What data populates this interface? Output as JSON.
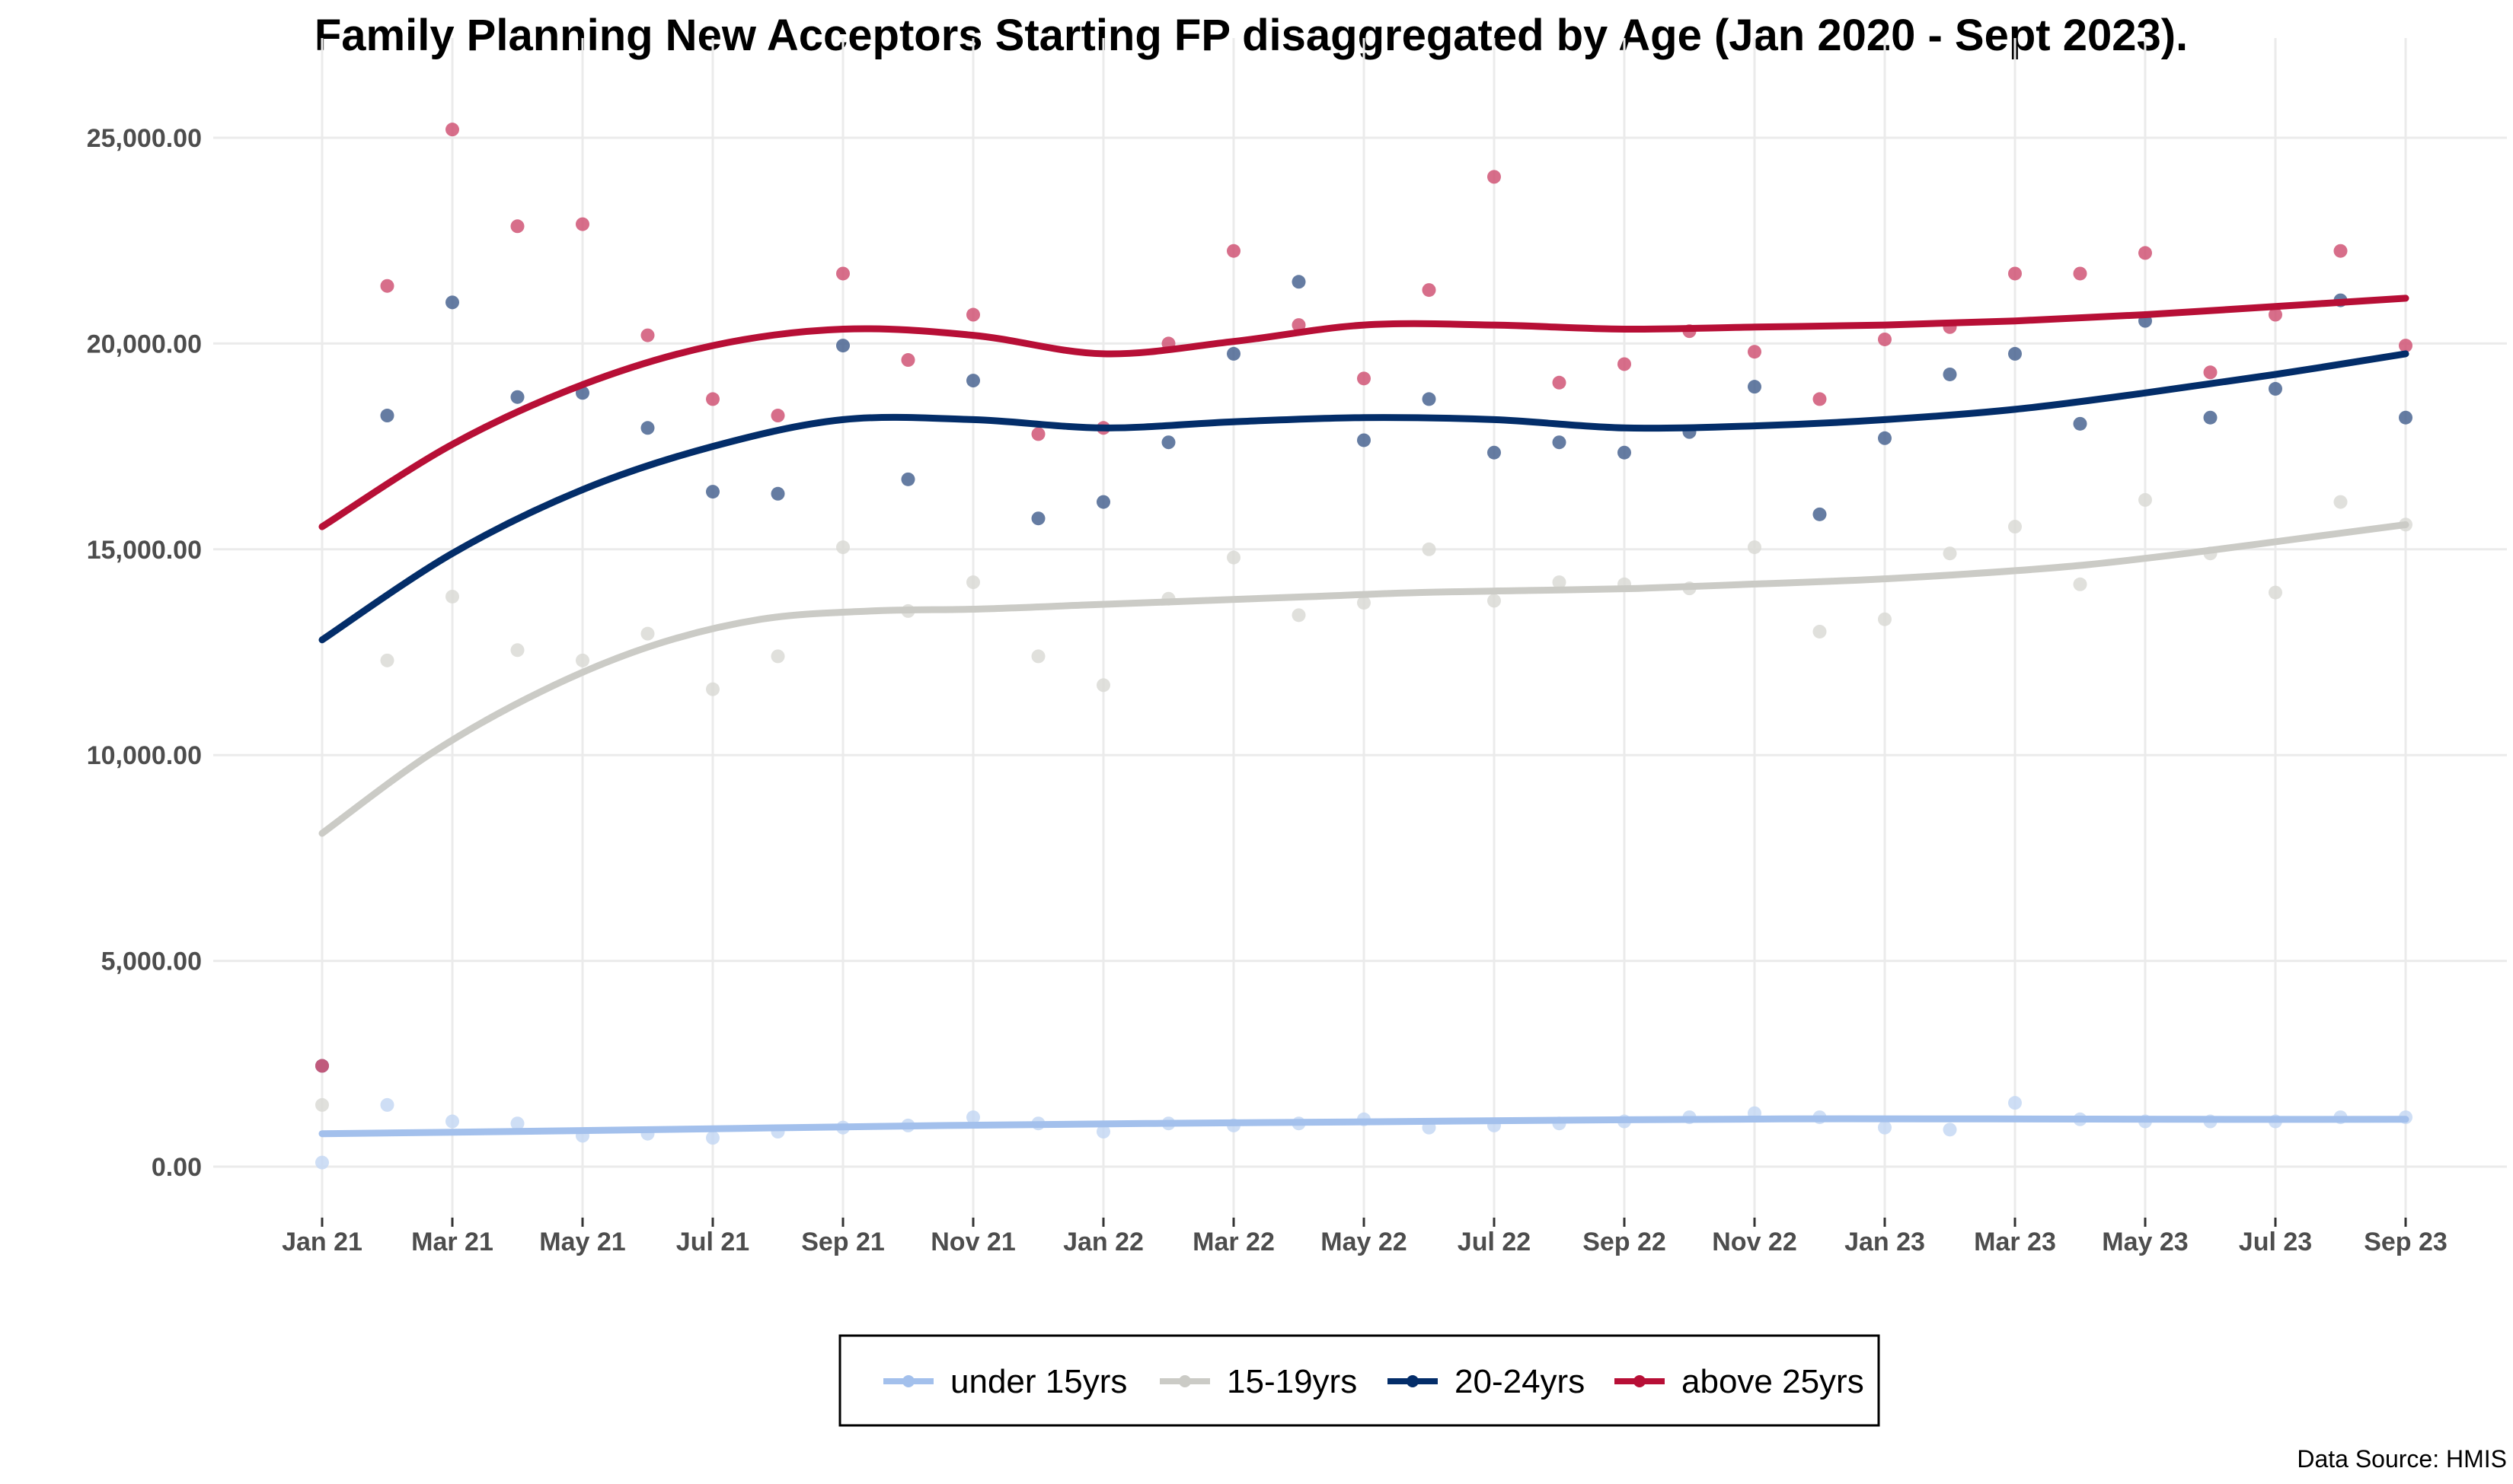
{
  "chart_data": {
    "type": "line",
    "title": "Family Planning New Acceptors Starting FP disaggregated by Age (Jan 2020 - Sept 2023).",
    "xlabel": "",
    "ylabel": "",
    "source": "Data Source: HMIS",
    "x": [
      "2021-01",
      "2021-02",
      "2021-03",
      "2021-04",
      "2021-05",
      "2021-06",
      "2021-07",
      "2021-08",
      "2021-09",
      "2021-10",
      "2021-11",
      "2021-12",
      "2022-01",
      "2022-02",
      "2022-03",
      "2022-04",
      "2022-05",
      "2022-06",
      "2022-07",
      "2022-08",
      "2022-09",
      "2022-10",
      "2022-11",
      "2022-12",
      "2023-01",
      "2023-02",
      "2023-03",
      "2023-04",
      "2023-05",
      "2023-06",
      "2023-07",
      "2023-08",
      "2023-09"
    ],
    "x_tick_labels": [
      "Jan 21",
      "Mar 21",
      "May 21",
      "Jul 21",
      "Sep 21",
      "Nov 21",
      "Jan 22",
      "Mar 22",
      "May 22",
      "Jul 22",
      "Sep 22",
      "Nov 22",
      "Jan 23",
      "Mar 23",
      "May 23",
      "Jul 23",
      "Sep 23"
    ],
    "y_tick_labels": [
      "0.00",
      "5,000.00",
      "10,000.00",
      "15,000.00",
      "20,000.00",
      "25,000.00"
    ],
    "y_ticks": [
      0,
      5000,
      10000,
      15000,
      20000,
      25000
    ],
    "ylim": [
      -1100,
      25900
    ],
    "grid": true,
    "legend_position": "bottom",
    "series": [
      {
        "name": "under 15yrs",
        "color": "#a3c0ec",
        "point_color": "#c6d8f3",
        "values": [
          100,
          1500,
          1100,
          1050,
          750,
          800,
          700,
          850,
          950,
          1000,
          1200,
          1050,
          850,
          1050,
          1000,
          1050,
          1150,
          950,
          1000,
          1050,
          1100,
          1200,
          1300,
          1200,
          950,
          900,
          1550,
          1150,
          1100,
          1100,
          1100,
          1200,
          1200
        ],
        "trend": [
          800,
          860,
          930,
          1000,
          1050,
          1090,
          1130,
          1160,
          1160,
          1150,
          1150
        ]
      },
      {
        "name": "15-19yrs",
        "color": "#cbcbc6",
        "point_color": "#dadad6",
        "values": [
          1500,
          12300,
          13850,
          12550,
          12300,
          12950,
          11600,
          12400,
          15050,
          13500,
          14200,
          12400,
          11700,
          13800,
          14800,
          13400,
          13700,
          15000,
          13750,
          14200,
          14150,
          14050,
          15050,
          13000,
          13300,
          14900,
          15550,
          14150,
          16200,
          14900,
          13950,
          16150,
          15600
        ],
        "trend": [
          8100,
          10050,
          11550,
          12650,
          13300,
          13500,
          13550,
          13650,
          13750,
          13850,
          13950,
          14000,
          14050,
          14150,
          14250,
          14400,
          14600,
          14900,
          15250,
          15600
        ]
      },
      {
        "name": "20-24yrs",
        "color": "#032d69",
        "point_color": "#4a6592",
        "values": [
          2450,
          18250,
          21000,
          18700,
          18800,
          17950,
          16400,
          16350,
          19950,
          16700,
          19100,
          15750,
          16150,
          17600,
          19750,
          21500,
          17650,
          18650,
          17350,
          17600,
          17350,
          17850,
          18950,
          15850,
          17700,
          19250,
          19750,
          18050,
          20550,
          18200,
          18900,
          21050,
          18200
        ],
        "trend": [
          12800,
          14900,
          16450,
          17500,
          18150,
          18150,
          17950,
          18100,
          18200,
          18150,
          17950,
          18000,
          18150,
          18400,
          18800,
          19250,
          19750
        ]
      },
      {
        "name": "above 25yrs",
        "color": "#b70f36",
        "point_color": "#d05575",
        "values": [
          2450,
          21400,
          25200,
          22850,
          22900,
          20200,
          18650,
          18250,
          21700,
          19600,
          20700,
          17800,
          17950,
          20000,
          22250,
          20450,
          19150,
          21300,
          24050,
          19050,
          19500,
          20300,
          19800,
          18650,
          20100,
          20400,
          21700,
          21700,
          22200,
          19300,
          20700,
          22250,
          19950
        ],
        "trend": [
          15550,
          17550,
          19000,
          19950,
          20350,
          20200,
          19750,
          20050,
          20450,
          20450,
          20350,
          20400,
          20450,
          20550,
          20700,
          20900,
          21100
        ]
      }
    ]
  }
}
